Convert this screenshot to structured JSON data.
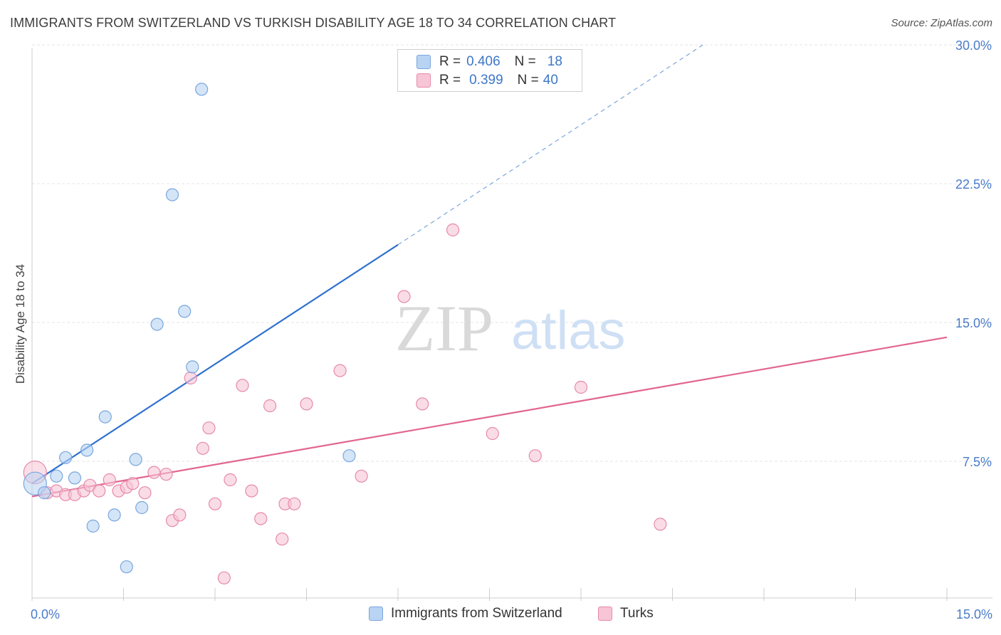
{
  "title": "IMMIGRANTS FROM SWITZERLAND VS TURKISH DISABILITY AGE 18 TO 34 CORRELATION CHART",
  "source": "Source: ZipAtlas.com",
  "watermark": {
    "zip": "ZIP",
    "atlas": "atlas"
  },
  "colors": {
    "blue_fill": "#b8d3f3",
    "blue_stroke": "#7aa6dc",
    "blue_line": "#2f72cf",
    "pink_fill": "#f7c5d6",
    "pink_stroke": "#e68aab",
    "pink_line": "#e2658f",
    "grid": "#e6e6e6",
    "tick_text": "#4a7cc9"
  },
  "legend": {
    "rows": [
      {
        "r_label": "R =",
        "r_value": "0.406",
        "n_label": "N =",
        "n_value": "18"
      },
      {
        "r_label": "R =",
        "r_value": "0.399",
        "n_label": "N =",
        "n_value": "40"
      }
    ]
  },
  "bottom_legend": {
    "series1": "Immigrants from Switzerland",
    "series2": "Turks"
  },
  "chart_data": {
    "type": "scatter",
    "title": "IMMIGRANTS FROM SWITZERLAND VS TURKISH DISABILITY AGE 18 TO 34 CORRELATION CHART",
    "xlabel": "",
    "ylabel": "Disability Age 18 to 34",
    "xlim": [
      0,
      15
    ],
    "ylim": [
      0.5,
      30.5
    ],
    "y_ticks": [
      {
        "value": 7.5,
        "label": "7.5%"
      },
      {
        "value": 15.0,
        "label": "15.0%"
      },
      {
        "value": 22.5,
        "label": "22.5%"
      },
      {
        "value": 30.0,
        "label": "30.0%"
      }
    ],
    "x_tick_labels": [
      {
        "value": 0,
        "label": "0.0%"
      },
      {
        "value": 15,
        "label": "15.0%"
      }
    ],
    "x_minor_ticks": [
      0,
      1.5,
      3,
      4.5,
      6,
      7.5,
      9,
      10.5,
      12,
      13.5,
      15
    ],
    "series": [
      {
        "name": "Immigrants from Switzerland",
        "points": [
          {
            "x": 0.05,
            "y": 6.3,
            "big": true
          },
          {
            "x": 0.2,
            "y": 5.8
          },
          {
            "x": 0.4,
            "y": 6.7
          },
          {
            "x": 0.55,
            "y": 7.7
          },
          {
            "x": 0.7,
            "y": 6.6
          },
          {
            "x": 0.9,
            "y": 8.1
          },
          {
            "x": 1.0,
            "y": 4.0
          },
          {
            "x": 1.2,
            "y": 9.9
          },
          {
            "x": 1.35,
            "y": 4.6
          },
          {
            "x": 1.55,
            "y": 1.8
          },
          {
            "x": 1.7,
            "y": 7.6
          },
          {
            "x": 1.8,
            "y": 5.0
          },
          {
            "x": 2.05,
            "y": 14.9
          },
          {
            "x": 2.3,
            "y": 21.9
          },
          {
            "x": 2.5,
            "y": 15.6
          },
          {
            "x": 2.63,
            "y": 12.6
          },
          {
            "x": 2.78,
            "y": 27.6
          },
          {
            "x": 5.2,
            "y": 7.8
          }
        ],
        "trend": {
          "x0": 0.0,
          "y0": 6.3,
          "x1": 6.0,
          "y1": 19.2,
          "dash_to_x": 11.0,
          "dash_to_y": 30.0
        }
      },
      {
        "name": "Turks",
        "points": [
          {
            "x": 0.05,
            "y": 6.9,
            "big": true
          },
          {
            "x": 0.25,
            "y": 5.8
          },
          {
            "x": 0.4,
            "y": 5.9
          },
          {
            "x": 0.55,
            "y": 5.7
          },
          {
            "x": 0.7,
            "y": 5.7
          },
          {
            "x": 0.85,
            "y": 5.9
          },
          {
            "x": 0.95,
            "y": 6.2
          },
          {
            "x": 1.1,
            "y": 5.9
          },
          {
            "x": 1.27,
            "y": 6.5
          },
          {
            "x": 1.42,
            "y": 5.9
          },
          {
            "x": 1.55,
            "y": 6.1
          },
          {
            "x": 1.65,
            "y": 6.3
          },
          {
            "x": 1.85,
            "y": 5.8
          },
          {
            "x": 2.0,
            "y": 6.9
          },
          {
            "x": 2.2,
            "y": 6.8
          },
          {
            "x": 2.3,
            "y": 4.3
          },
          {
            "x": 2.42,
            "y": 4.6
          },
          {
            "x": 2.6,
            "y": 12.0
          },
          {
            "x": 2.8,
            "y": 8.2
          },
          {
            "x": 2.9,
            "y": 9.3
          },
          {
            "x": 3.0,
            "y": 5.2
          },
          {
            "x": 3.15,
            "y": 1.2
          },
          {
            "x": 3.25,
            "y": 6.5
          },
          {
            "x": 3.45,
            "y": 11.6
          },
          {
            "x": 3.6,
            "y": 5.9
          },
          {
            "x": 3.75,
            "y": 4.4
          },
          {
            "x": 3.9,
            "y": 10.5
          },
          {
            "x": 4.1,
            "y": 3.3
          },
          {
            "x": 4.15,
            "y": 5.2
          },
          {
            "x": 4.3,
            "y": 5.2
          },
          {
            "x": 4.5,
            "y": 10.6
          },
          {
            "x": 5.05,
            "y": 12.4
          },
          {
            "x": 5.4,
            "y": 6.7
          },
          {
            "x": 6.1,
            "y": 16.4
          },
          {
            "x": 6.4,
            "y": 10.6
          },
          {
            "x": 6.9,
            "y": 20.0
          },
          {
            "x": 7.55,
            "y": 9.0
          },
          {
            "x": 8.25,
            "y": 7.8
          },
          {
            "x": 9.0,
            "y": 11.5
          },
          {
            "x": 10.3,
            "y": 4.1
          }
        ],
        "trend": {
          "x0": 0.0,
          "y0": 5.6,
          "x1": 15.0,
          "y1": 14.2
        }
      }
    ]
  }
}
